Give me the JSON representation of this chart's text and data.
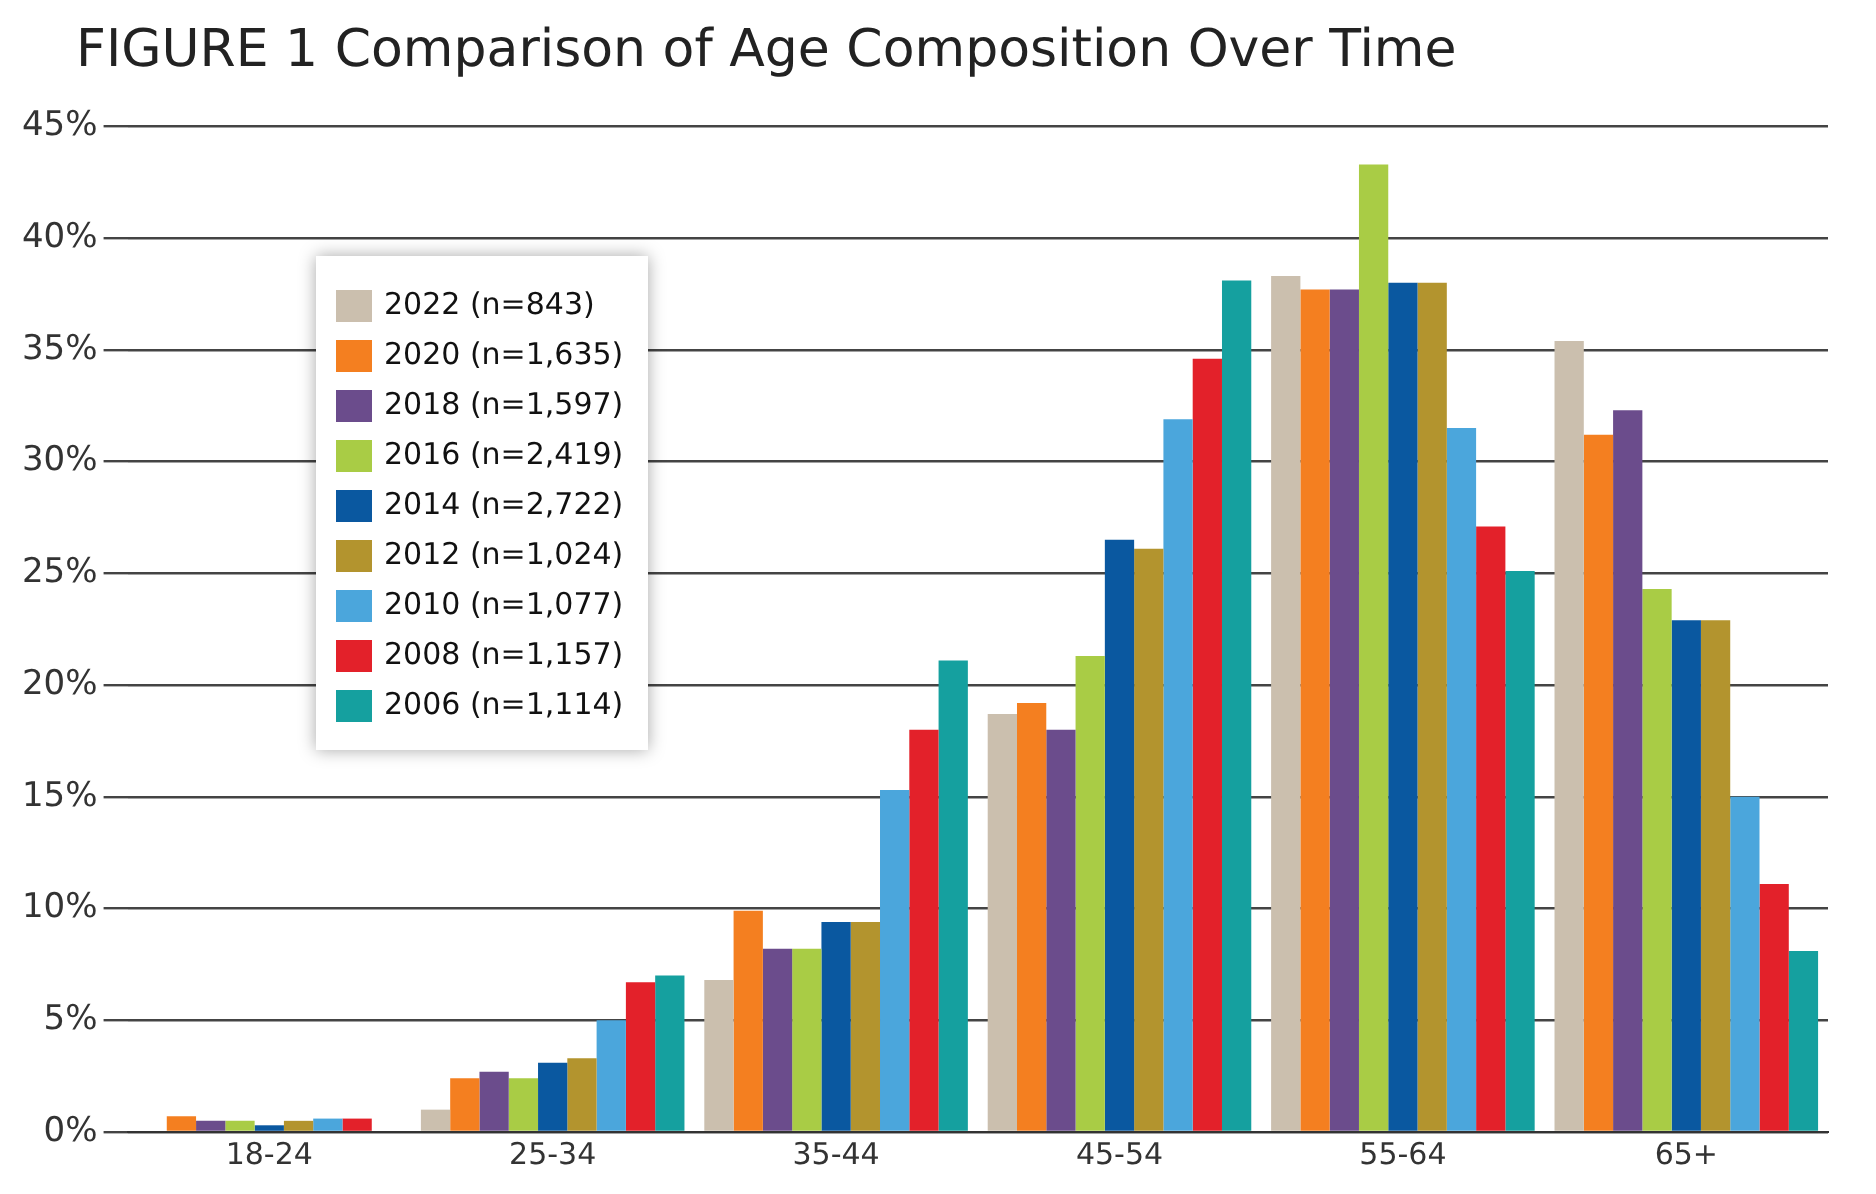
{
  "chart_data": {
    "type": "bar",
    "title": "FIGURE 1 Comparison of Age Composition Over Time",
    "categories": [
      "18-24",
      "25-34",
      "35-44",
      "45-54",
      "55-64",
      "65+"
    ],
    "series": [
      {
        "name": "2022 (n=843)",
        "color": "#cbbfae",
        "values": [
          0,
          1.0,
          6.8,
          18.7,
          38.3,
          35.4
        ]
      },
      {
        "name": "2020 (n=1,635)",
        "color": "#f47f20",
        "values": [
          0.7,
          2.4,
          9.9,
          19.2,
          37.7,
          31.2
        ]
      },
      {
        "name": "2018 (n=1,597)",
        "color": "#6b4c8c",
        "values": [
          0.5,
          2.7,
          8.2,
          18.0,
          37.7,
          32.3
        ]
      },
      {
        "name": "2016 (n=2,419)",
        "color": "#a9cc45",
        "values": [
          0.5,
          2.4,
          8.2,
          21.3,
          43.3,
          24.3
        ]
      },
      {
        "name": "2014 (n=2,722)",
        "color": "#0a58a0",
        "values": [
          0.3,
          3.1,
          9.4,
          26.5,
          38.0,
          22.9
        ]
      },
      {
        "name": "2012 (n=1,024)",
        "color": "#b3942e",
        "values": [
          0.5,
          3.3,
          9.4,
          26.1,
          38.0,
          22.9
        ]
      },
      {
        "name": "2010 (n=1,077)",
        "color": "#4ba6dc",
        "values": [
          0.6,
          5.0,
          15.3,
          31.9,
          31.5,
          15.0
        ]
      },
      {
        "name": "2008 (n=1,157)",
        "color": "#e3212a",
        "values": [
          0.6,
          6.7,
          18.0,
          34.6,
          27.1,
          11.1
        ]
      },
      {
        "name": "2006 (n=1,114)",
        "color": "#15a09f",
        "values": [
          0,
          7.0,
          21.1,
          38.1,
          25.1,
          8.1
        ]
      }
    ],
    "ylim": [
      0,
      45
    ],
    "yticks": [
      {
        "value": 0,
        "label": "0%"
      },
      {
        "value": 5,
        "label": "5%"
      },
      {
        "value": 10,
        "label": "10%"
      },
      {
        "value": 15,
        "label": "15%"
      },
      {
        "value": 20,
        "label": "20%"
      },
      {
        "value": 25,
        "label": "25%"
      },
      {
        "value": 30,
        "label": "30%"
      },
      {
        "value": 35,
        "label": "35%"
      },
      {
        "value": 40,
        "label": "40%"
      },
      {
        "value": 45,
        "label": "45%"
      }
    ],
    "grid": "y",
    "legend": "top left"
  }
}
